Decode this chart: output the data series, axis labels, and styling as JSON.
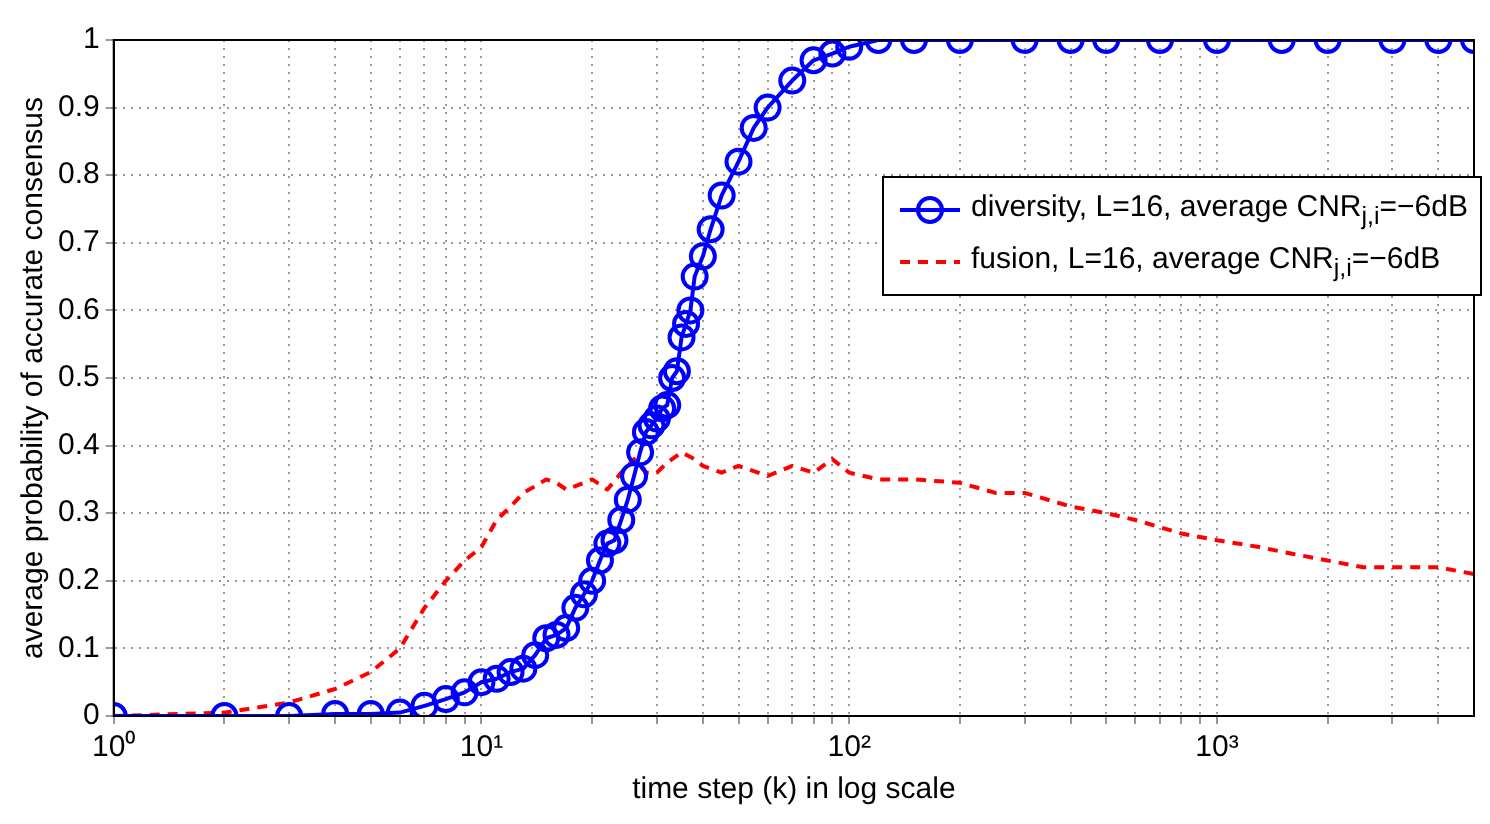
{
  "chart_data": {
    "type": "line",
    "xlabel": "time step (k) in log scale",
    "ylabel": "average probability of accurate consensus",
    "log": "x",
    "grid": true,
    "legend": "right",
    "xlim": [
      1,
      5000
    ],
    "ylim": [
      0,
      1
    ],
    "xticks": [
      {
        "value": 1,
        "label": "10⁰"
      },
      {
        "value": 2,
        "label": null
      },
      {
        "value": 3,
        "label": null
      },
      {
        "value": 4,
        "label": null
      },
      {
        "value": 5,
        "label": null
      },
      {
        "value": 6,
        "label": null
      },
      {
        "value": 7,
        "label": null
      },
      {
        "value": 8,
        "label": null
      },
      {
        "value": 9,
        "label": null
      },
      {
        "value": 10,
        "label": "10¹"
      },
      {
        "value": 20,
        "label": null
      },
      {
        "value": 30,
        "label": null
      },
      {
        "value": 40,
        "label": null
      },
      {
        "value": 50,
        "label": null
      },
      {
        "value": 60,
        "label": null
      },
      {
        "value": 70,
        "label": null
      },
      {
        "value": 80,
        "label": null
      },
      {
        "value": 90,
        "label": null
      },
      {
        "value": 100,
        "label": "10²"
      },
      {
        "value": 200,
        "label": null
      },
      {
        "value": 300,
        "label": null
      },
      {
        "value": 400,
        "label": null
      },
      {
        "value": 500,
        "label": null
      },
      {
        "value": 600,
        "label": null
      },
      {
        "value": 700,
        "label": null
      },
      {
        "value": 800,
        "label": null
      },
      {
        "value": 900,
        "label": null
      },
      {
        "value": 1000,
        "label": "10³"
      },
      {
        "value": 2000,
        "label": null
      },
      {
        "value": 3000,
        "label": null
      },
      {
        "value": 4000,
        "label": null
      }
    ],
    "yticks": [
      0,
      0.1,
      0.2,
      0.3,
      0.4,
      0.5,
      0.6,
      0.7,
      0.8,
      0.9,
      1
    ],
    "series": [
      {
        "name": "diversity, L=16, average CNR$_{j,i}$=−6dB",
        "color": "#0000ff",
        "marker": "circle",
        "line_style": "solid",
        "x": [
          1,
          2,
          3,
          4,
          5,
          6,
          7,
          8,
          9,
          10,
          11,
          12,
          13,
          14,
          15,
          16,
          17,
          18,
          19,
          20,
          21,
          22,
          23,
          24,
          25,
          26,
          27,
          28,
          29,
          30,
          31,
          32,
          33,
          34,
          35,
          36,
          37,
          38,
          40,
          42,
          45,
          50,
          55,
          60,
          70,
          80,
          90,
          100,
          120,
          150,
          200,
          300,
          400,
          500,
          700,
          1000,
          1500,
          2000,
          3000,
          4000,
          5000
        ],
        "values": [
          0,
          0,
          0,
          0.003,
          0.003,
          0.005,
          0.015,
          0.025,
          0.035,
          0.05,
          0.055,
          0.065,
          0.07,
          0.09,
          0.115,
          0.12,
          0.13,
          0.16,
          0.18,
          0.2,
          0.23,
          0.255,
          0.26,
          0.29,
          0.32,
          0.355,
          0.39,
          0.42,
          0.43,
          0.44,
          0.455,
          0.46,
          0.5,
          0.51,
          0.56,
          0.58,
          0.6,
          0.65,
          0.68,
          0.72,
          0.77,
          0.82,
          0.87,
          0.9,
          0.94,
          0.97,
          0.98,
          0.99,
          1,
          1,
          1,
          1,
          1,
          1,
          1,
          1,
          1,
          1,
          1,
          1,
          1
        ]
      },
      {
        "name": "fusion, L=16, average CNR$_{j,i}$=−6dB",
        "color": "#ff0000",
        "marker": "none",
        "line_style": "dashed",
        "x": [
          1,
          2,
          3,
          4,
          5,
          6,
          7,
          8,
          9,
          10,
          11,
          12,
          13,
          14,
          15,
          16,
          17,
          18,
          20,
          22,
          24,
          26,
          28,
          30,
          32,
          35,
          38,
          40,
          45,
          50,
          60,
          70,
          80,
          90,
          100,
          120,
          150,
          200,
          250,
          300,
          400,
          500,
          600,
          800,
          1000,
          1300,
          1600,
          2000,
          2500,
          3000,
          4000,
          5000
        ],
        "values": [
          0,
          0.005,
          0.02,
          0.04,
          0.065,
          0.1,
          0.16,
          0.2,
          0.23,
          0.25,
          0.29,
          0.31,
          0.33,
          0.34,
          0.35,
          0.345,
          0.335,
          0.34,
          0.35,
          0.335,
          0.36,
          0.38,
          0.36,
          0.36,
          0.375,
          0.39,
          0.38,
          0.37,
          0.36,
          0.37,
          0.355,
          0.37,
          0.36,
          0.38,
          0.36,
          0.35,
          0.35,
          0.345,
          0.33,
          0.33,
          0.31,
          0.3,
          0.29,
          0.27,
          0.26,
          0.25,
          0.24,
          0.23,
          0.22,
          0.22,
          0.22,
          0.21
        ]
      }
    ]
  }
}
